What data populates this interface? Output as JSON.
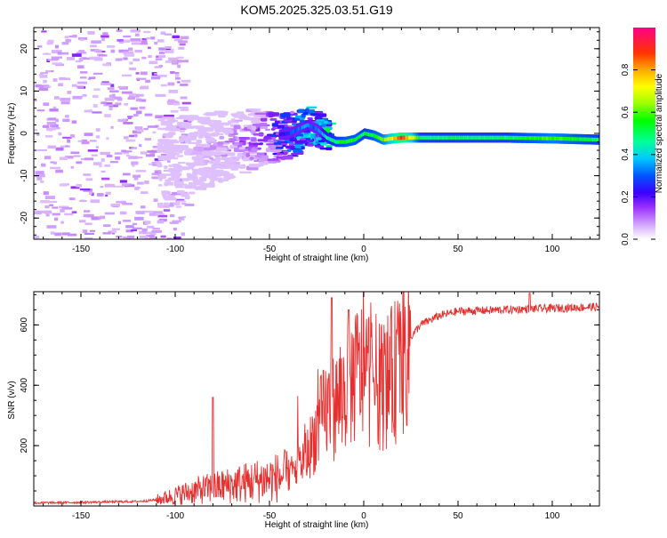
{
  "title": "KOM5.2025.325.03.51.G19",
  "chart_data": [
    {
      "type": "heatmap",
      "title": "KOM5.2025.325.03.51.G19",
      "xlabel": "Height of straight line (km)",
      "ylabel": "Frequency (Hz)",
      "xlim": [
        -175,
        125
      ],
      "ylim": [
        -25,
        25
      ],
      "x_ticks": [
        -150,
        -100,
        -50,
        0,
        50,
        100
      ],
      "y_ticks": [
        -20,
        -10,
        0,
        10,
        20
      ],
      "ridge": {
        "x": [
          -100,
          -90,
          -80,
          -70,
          -60,
          -50,
          -40,
          -30,
          -25,
          -20,
          -15,
          -10,
          -5,
          0,
          5,
          10,
          15,
          20,
          30,
          50,
          75,
          100,
          125
        ],
        "frequency": [
          -6,
          -4,
          -3,
          -2,
          -1,
          -0.5,
          0,
          2,
          1,
          -1,
          -2,
          -2,
          -1.5,
          0,
          -0.5,
          -1.5,
          -1.2,
          -1,
          -1,
          -1,
          -1,
          -1.2,
          -1.5
        ],
        "amplitude": [
          0.03,
          0.06,
          0.08,
          0.1,
          0.13,
          0.2,
          0.28,
          0.35,
          0.3,
          0.45,
          0.5,
          0.55,
          0.55,
          0.5,
          0.55,
          0.6,
          0.75,
          0.9,
          0.5,
          0.5,
          0.5,
          0.6,
          0.5
        ]
      },
      "colorbar": {
        "label": "Normalized spectral amplitude",
        "range": [
          0,
          1
        ],
        "ticks": [
          "0.0",
          "0.2",
          "0.4",
          "0.6",
          "0.8"
        ],
        "tick_values": [
          0,
          0.2,
          0.4,
          0.6,
          0.8
        ]
      }
    },
    {
      "type": "line",
      "xlabel": "Height of straight line (km)",
      "ylabel": "SNR (v/v)",
      "xlim": [
        -175,
        125
      ],
      "ylim": [
        0,
        710
      ],
      "x_ticks": [
        -150,
        -100,
        -50,
        0,
        50,
        100
      ],
      "y_ticks": [
        200,
        400,
        600
      ],
      "color": "#e53030",
      "envelope": {
        "x": [
          -175,
          -150,
          -120,
          -110,
          -100,
          -90,
          -80,
          -70,
          -60,
          -50,
          -40,
          -35,
          -30,
          -25,
          -20,
          -15,
          -10,
          -5,
          0,
          5,
          10,
          15,
          20,
          25,
          30,
          40,
          50,
          75,
          100,
          125
        ],
        "snr": [
          10,
          12,
          15,
          20,
          35,
          50,
          60,
          70,
          80,
          90,
          100,
          130,
          170,
          250,
          320,
          330,
          380,
          430,
          450,
          420,
          400,
          430,
          480,
          560,
          600,
          630,
          645,
          650,
          655,
          660
        ]
      },
      "spikes": [
        {
          "x": -80,
          "snr": 360
        },
        {
          "x": -17,
          "snr": 690
        },
        {
          "x": -8,
          "snr": 650
        },
        {
          "x": 88,
          "snr": 705
        }
      ]
    }
  ]
}
